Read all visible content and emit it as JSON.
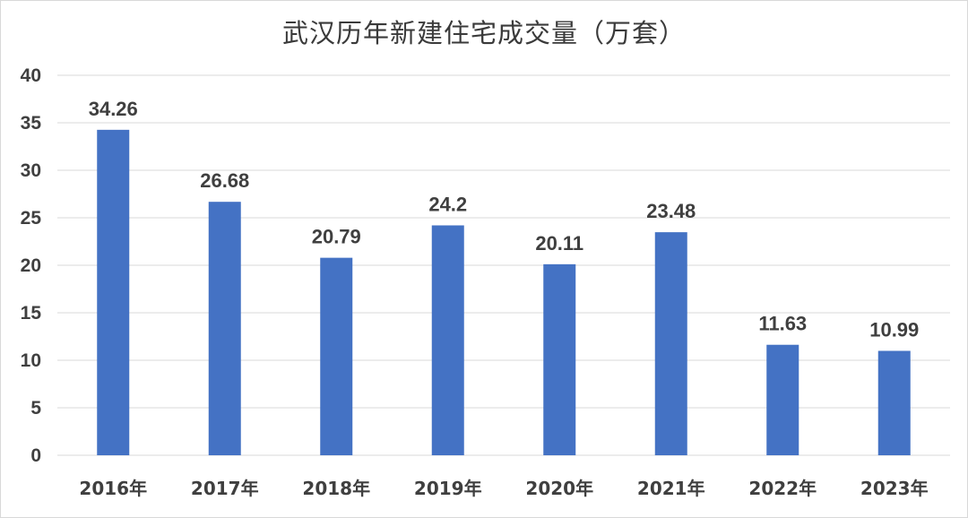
{
  "chart_data": {
    "type": "bar",
    "title": "武汉历年新建住宅成交量（万套）",
    "xlabel": "",
    "ylabel": "",
    "categories": [
      "2016年",
      "2017年",
      "2018年",
      "2019年",
      "2020年",
      "2021年",
      "2022年",
      "2023年"
    ],
    "values": [
      34.26,
      26.68,
      20.79,
      24.2,
      20.11,
      23.48,
      11.63,
      10.99
    ],
    "data_labels": [
      "34.26",
      "26.68",
      "20.79",
      "24.2",
      "20.11",
      "23.48",
      "11.63",
      "10.99"
    ],
    "yticks": [
      0,
      5,
      10,
      15,
      20,
      25,
      30,
      35,
      40
    ],
    "ylim": [
      0,
      40
    ],
    "grid": true,
    "legend": "none",
    "bar_color": "#4472c4"
  }
}
